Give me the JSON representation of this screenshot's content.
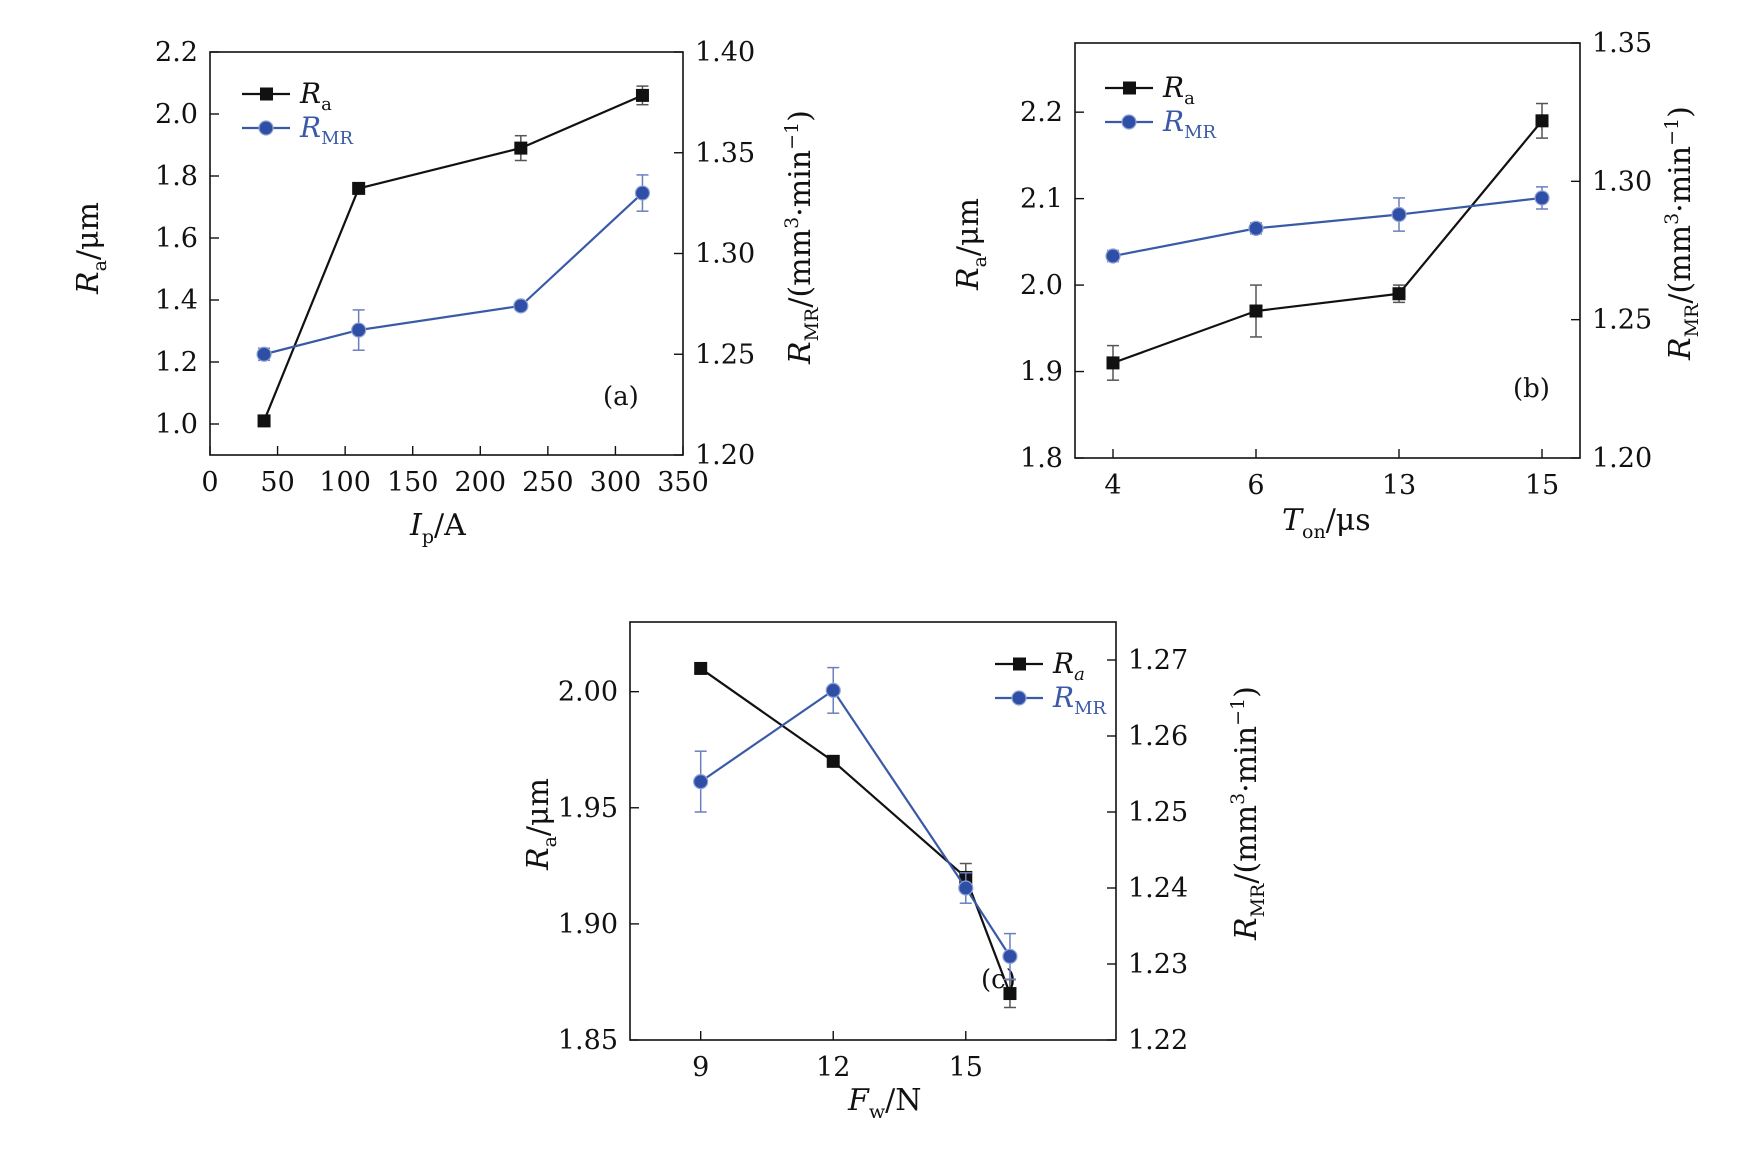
{
  "colors": {
    "ra": "#111111",
    "rmr": "#3a5aa8",
    "rmr_marker": "#2f4fa6"
  },
  "chart_data": [
    {
      "type": "line",
      "panel": "(a)",
      "xlabel": {
        "main": "I",
        "sub": "p",
        "unit": "/A"
      },
      "ylabel_left": {
        "main": "R",
        "sub": "a",
        "unit": "/μm"
      },
      "ylabel_right": {
        "main": "R",
        "sub": "MR",
        "unit": "/(mm",
        "sup": "3",
        "mid": "·min",
        "sup2": "−1",
        "end": ")"
      },
      "xlim": [
        0,
        350
      ],
      "xticks": [
        "0",
        "50",
        "100",
        "150",
        "200",
        "250",
        "300",
        "350"
      ],
      "ylim_left": [
        0.9,
        2.2
      ],
      "yticks_left": [
        "1.0",
        "1.2",
        "1.4",
        "1.6",
        "1.8",
        "2.0",
        "2.2"
      ],
      "ylim_right": [
        1.2,
        1.4
      ],
      "yticks_right": [
        "1.20",
        "1.25",
        "1.30",
        "1.35",
        "1.40"
      ],
      "legend": {
        "position": "top-left",
        "ra": {
          "main": "R",
          "sub": "a"
        },
        "rmr": {
          "main": "R",
          "sub": "MR"
        }
      },
      "series": [
        {
          "name": "Ra",
          "axis": "left",
          "x": [
            40,
            110,
            230,
            320
          ],
          "y": [
            1.01,
            1.76,
            1.89,
            2.06
          ],
          "err": [
            0,
            0,
            0.04,
            0.03
          ]
        },
        {
          "name": "RMR",
          "axis": "right",
          "x": [
            40,
            110,
            230,
            320
          ],
          "y": [
            1.25,
            1.262,
            1.274,
            1.33
          ],
          "err": [
            0.003,
            0.01,
            0.002,
            0.009
          ]
        }
      ]
    },
    {
      "type": "line",
      "panel": "(b)",
      "xlabel": {
        "main": "T",
        "sub": "on",
        "unit": "/μs"
      },
      "ylabel_left": {
        "main": "R",
        "sub": "a",
        "unit": "/μm"
      },
      "ylabel_right": {
        "main": "R",
        "sub": "MR",
        "unit": "/(mm",
        "sup": "3",
        "mid": "·min",
        "sup2": "−1",
        "end": ")"
      },
      "categories": [
        "4",
        "6",
        "13",
        "15"
      ],
      "ylim_left": [
        1.8,
        2.28
      ],
      "yticks_left": [
        "1.8",
        "1.9",
        "2.0",
        "2.1",
        "2.2"
      ],
      "ylim_right": [
        1.2,
        1.35
      ],
      "yticks_right": [
        "1.20",
        "1.25",
        "1.30",
        "1.35"
      ],
      "legend": {
        "position": "top-left",
        "ra": {
          "main": "R",
          "sub": "a"
        },
        "rmr": {
          "main": "R",
          "sub": "MR"
        }
      },
      "series": [
        {
          "name": "Ra",
          "axis": "left",
          "y": [
            1.91,
            1.97,
            1.99,
            2.19
          ],
          "err": [
            0.02,
            0.03,
            0.01,
            0.02
          ]
        },
        {
          "name": "RMR",
          "axis": "right",
          "y": [
            1.273,
            1.283,
            1.288,
            1.294
          ],
          "err": [
            0.002,
            0.002,
            0.006,
            0.004
          ]
        }
      ]
    },
    {
      "type": "line",
      "panel": "(c)",
      "xlabel": {
        "main": "F",
        "sub": "w",
        "unit": "/N"
      },
      "ylabel_left": {
        "main": "R",
        "sub": "a",
        "unit": "/μm"
      },
      "ylabel_right": {
        "main": "R",
        "sub": "MR",
        "unit": "/(mm",
        "sup": "3",
        "mid": "·min",
        "sup2": "−1",
        "end": ")"
      },
      "xlim": [
        7.4,
        18.4
      ],
      "xticks": [
        "9",
        "12",
        "15"
      ],
      "xtick_values": [
        9,
        12,
        15
      ],
      "ylim_left": [
        1.85,
        2.03
      ],
      "yticks_left": [
        "1.85",
        "1.90",
        "1.95",
        "2.00"
      ],
      "ylim_right": [
        1.22,
        1.275
      ],
      "yticks_right": [
        "1.22",
        "1.23",
        "1.24",
        "1.25",
        "1.26",
        "1.27"
      ],
      "legend": {
        "position": "top-right",
        "ra": {
          "main": "R",
          "sub": "a"
        },
        "rmr": {
          "main": "R",
          "sub": "MR"
        }
      },
      "series": [
        {
          "name": "Ra",
          "axis": "left",
          "x": [
            9,
            12,
            15,
            16
          ],
          "y": [
            2.01,
            1.97,
            1.92,
            1.87
          ],
          "err": [
            0,
            0,
            0.006,
            0.006
          ]
        },
        {
          "name": "RMR",
          "axis": "right",
          "x": [
            9,
            12,
            15,
            16
          ],
          "y": [
            1.254,
            1.266,
            1.24,
            1.231
          ],
          "err": [
            0.004,
            0.003,
            0.002,
            0.003
          ]
        }
      ]
    }
  ]
}
